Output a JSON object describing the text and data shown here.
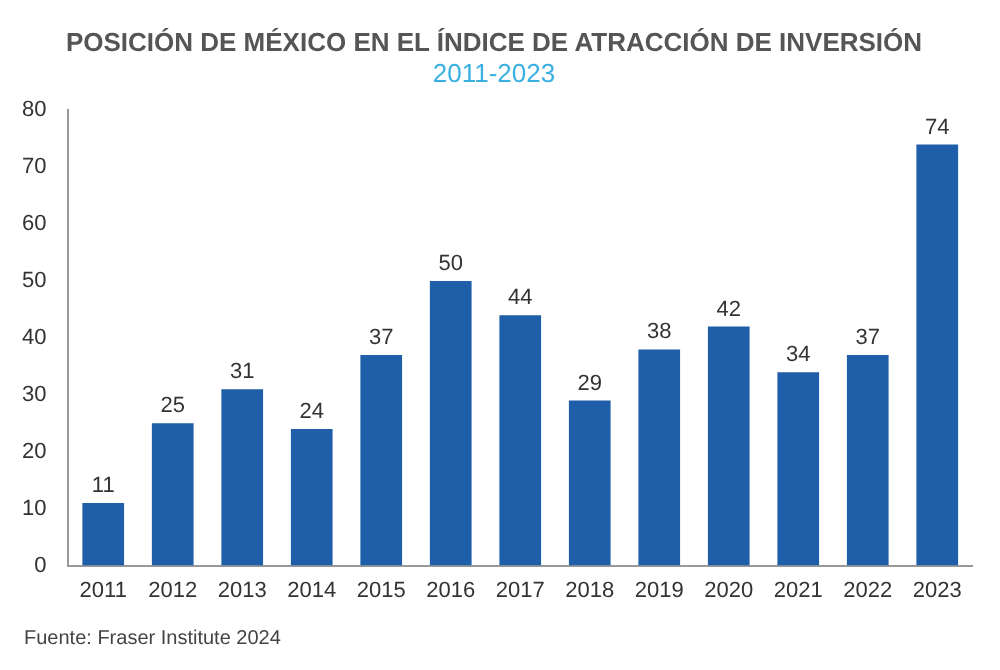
{
  "chart_data": {
    "type": "bar",
    "title": "POSICIÓN DE MÉXICO EN EL ÍNDICE DE ATRACCIÓN DE INVERSIÓN",
    "subtitle": "2011-2023",
    "categories": [
      "2011",
      "2012",
      "2013",
      "2014",
      "2015",
      "2016",
      "2017",
      "2018",
      "2019",
      "2020",
      "2021",
      "2022",
      "2023"
    ],
    "values": [
      11,
      25,
      31,
      24,
      37,
      50,
      44,
      29,
      38,
      42,
      34,
      37,
      74
    ],
    "color": "#1f5ea8",
    "ylim": [
      0,
      80
    ],
    "yticks": [
      0,
      10,
      20,
      30,
      40,
      50,
      60,
      70,
      80
    ],
    "grid": false,
    "data_labels": true,
    "annotations": [
      "Fuente: Fraser Institute 2024"
    ]
  }
}
